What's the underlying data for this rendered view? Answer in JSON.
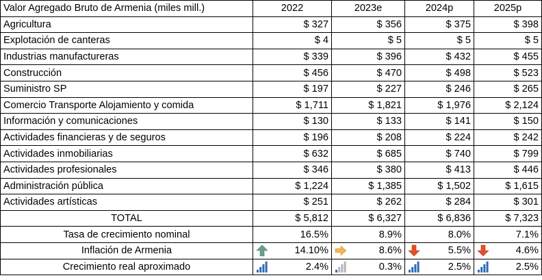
{
  "header": {
    "title": "Valor Agregado Bruto de Armenia (miles mill.)",
    "years": [
      "2022",
      "2023e",
      "2024p",
      "2025p"
    ]
  },
  "sectors": [
    {
      "name": "Agricultura",
      "values": [
        "$ 327",
        "$ 356",
        "$ 375",
        "$ 398"
      ]
    },
    {
      "name": "Explotación de canteras",
      "values": [
        "$ 4",
        "$ 5",
        "$ 5",
        "$ 5"
      ]
    },
    {
      "name": "Industrias manufactureras",
      "values": [
        "$ 339",
        "$ 396",
        "$ 432",
        "$ 455"
      ]
    },
    {
      "name": "Construcción",
      "values": [
        "$ 456",
        "$ 470",
        "$ 498",
        "$ 523"
      ]
    },
    {
      "name": "Suministro SP",
      "values": [
        "$ 197",
        "$ 227",
        "$ 246",
        "$ 265"
      ]
    },
    {
      "name": "Comercio Transporte Alojamiento y comida",
      "values": [
        "$ 1,711",
        "$ 1,821",
        "$ 1,976",
        "$ 2,124"
      ]
    },
    {
      "name": "Información y comunicaciones",
      "values": [
        "$ 130",
        "$ 133",
        "$ 141",
        "$ 150"
      ]
    },
    {
      "name": "Actividades financieras y de seguros",
      "values": [
        "$ 196",
        "$ 208",
        "$ 224",
        "$ 242"
      ]
    },
    {
      "name": "Actividades inmobiliarias",
      "values": [
        "$ 632",
        "$ 685",
        "$ 740",
        "$ 799"
      ]
    },
    {
      "name": "Actividades profesionales",
      "values": [
        "$ 346",
        "$ 380",
        "$ 413",
        "$ 446"
      ]
    },
    {
      "name": "Administración pública",
      "values": [
        "$ 1,224",
        "$ 1,385",
        "$ 1,502",
        "$ 1,615"
      ]
    },
    {
      "name": "Actividades artísticas",
      "values": [
        "$ 251",
        "$ 262",
        "$ 284",
        "$ 301"
      ]
    }
  ],
  "total": {
    "label": "TOTAL",
    "values": [
      "$ 5,812",
      "$ 6,327",
      "$ 6,836",
      "$ 7,323"
    ]
  },
  "growth_nominal": {
    "label": "Tasa de crecimiento nominal",
    "values": [
      "16.5%",
      "8.9%",
      "8.0%",
      "7.1%"
    ]
  },
  "inflation": {
    "label": "Inflación de Armenia",
    "values": [
      "14.10%",
      "8.6%",
      "5.5%",
      "4.6%"
    ],
    "icons": [
      "arrow-up-green-icon",
      "arrow-right-orange-icon",
      "arrow-down-red-icon",
      "arrow-down-red-icon"
    ]
  },
  "real_growth": {
    "label": "Crecimiento real aproximado",
    "values": [
      "2.4%",
      "0.3%",
      "2.5%",
      "2.5%"
    ],
    "icons": [
      "signal-bars-high-icon",
      "signal-bars-low-icon",
      "signal-bars-high-icon",
      "signal-bars-high-icon"
    ]
  },
  "colors": {
    "arrow_up": "#6b9e8c",
    "arrow_right": "#f4b455",
    "arrow_down": "#e0502a",
    "bars_active": "#2f6bb5",
    "bars_inactive": "#b5b5b5"
  }
}
